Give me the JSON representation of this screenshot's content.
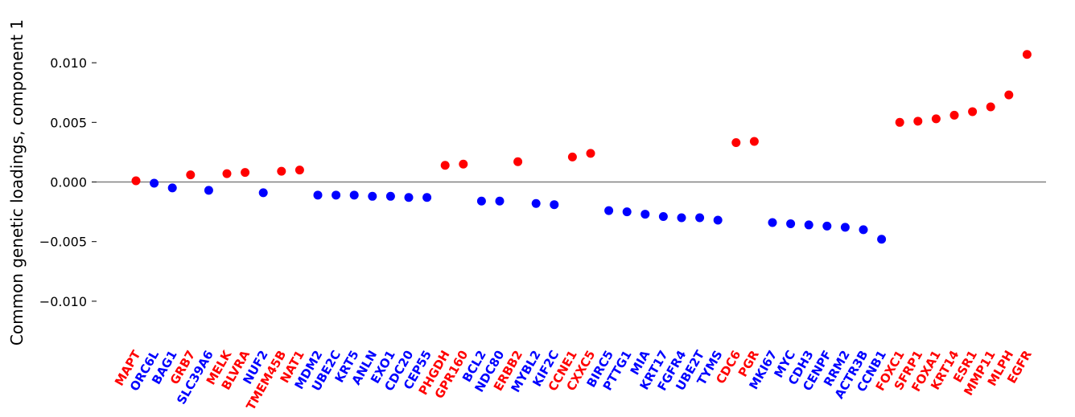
{
  "chart_data": {
    "type": "scatter",
    "title": "",
    "xlabel": "",
    "ylabel": "Common genetic loadings, component 1",
    "ylim": [
      -0.0125,
      0.0125
    ],
    "yticks": [
      -0.01,
      -0.005,
      0.0,
      0.005,
      0.01
    ],
    "ytick_labels": [
      "−0.010",
      "−0.005",
      "0.000",
      "0.005",
      "0.010"
    ],
    "zero_line": true,
    "grid": false,
    "legend": "none",
    "colors": {
      "positive": "#ff0000",
      "negative": "#0000ff",
      "zero_line": "#808080"
    },
    "categories": [
      "MAPT",
      "ORC6L",
      "BAG1",
      "GRB7",
      "SLC39A6",
      "MELK",
      "BLVRA",
      "NUF2",
      "TMEM45B",
      "NAT1",
      "MDM2",
      "UBE2C",
      "KRT5",
      "ANLN",
      "EXO1",
      "CDC20",
      "CEP55",
      "PHGDH",
      "GPR160",
      "BCL2",
      "NDC80",
      "ERBB2",
      "MYBL2",
      "KIF2C",
      "CCNE1",
      "CXXC5",
      "BIRC5",
      "PTTG1",
      "MIA",
      "KRT17",
      "FGFR4",
      "UBE2T",
      "TYMS",
      "CDC6",
      "PGR",
      "MKI67",
      "MYC",
      "CDH3",
      "CENPF",
      "RRM2",
      "ACTR3B",
      "CCNB1",
      "FOXC1",
      "SFRP1",
      "FOXA1",
      "KRT14",
      "ESR1",
      "MMP11",
      "MLPH",
      "EGFR"
    ],
    "values": [
      0.0001,
      -0.0001,
      -0.0005,
      0.0006,
      -0.0007,
      0.0007,
      0.0008,
      -0.0009,
      0.0009,
      0.001,
      -0.0011,
      -0.0011,
      -0.0011,
      -0.0012,
      -0.0012,
      -0.0013,
      -0.0013,
      0.0014,
      0.0015,
      -0.0016,
      -0.0016,
      0.0017,
      -0.0018,
      -0.0019,
      0.0021,
      0.0024,
      -0.0024,
      -0.0025,
      -0.0027,
      -0.0029,
      -0.003,
      -0.003,
      -0.0032,
      0.0033,
      0.0034,
      -0.0034,
      -0.0035,
      -0.0036,
      -0.0037,
      -0.0038,
      -0.004,
      -0.0048,
      0.005,
      0.0051,
      0.0053,
      0.0056,
      0.0059,
      0.0063,
      0.0073,
      0.0107
    ]
  }
}
